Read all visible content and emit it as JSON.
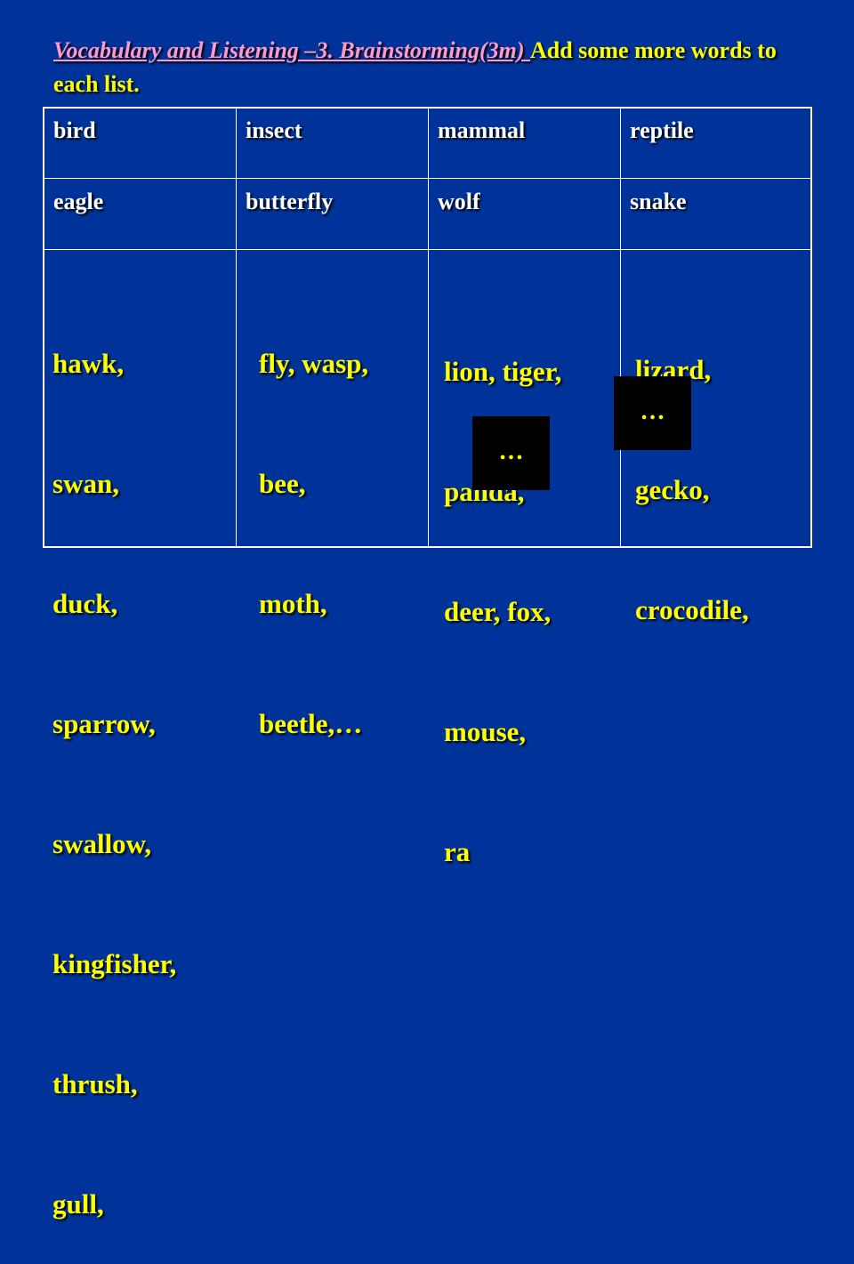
{
  "title": {
    "heading": "Vocabulary and Listening –3. Brainstorming(3m)  ",
    "instruction": "Add some more words to each list."
  },
  "table": {
    "headers": [
      "bird",
      "insect",
      "mammal",
      "reptile"
    ],
    "examples": [
      "eagle",
      "butterfly",
      "wolf",
      "snake"
    ],
    "lists": [
      [
        "hawk,",
        "swan,",
        "duck,",
        "sparrow,",
        "swallow,",
        "kingfisher,",
        "thrush,",
        "gull,"
      ],
      [
        "fly, wasp,",
        "bee,",
        "moth,",
        "beetle,…"
      ],
      [
        "lion, tiger,",
        "panda,",
        "deer, fox,",
        "mouse,",
        "ra"
      ],
      [
        "lizard,",
        "gecko,",
        "crocodile,"
      ]
    ]
  },
  "covers": [
    "…",
    "…"
  ],
  "colors": {
    "background": "#003399",
    "heading": "#ff99cc",
    "text": "#ffff00",
    "header_text": "#ffffff"
  }
}
